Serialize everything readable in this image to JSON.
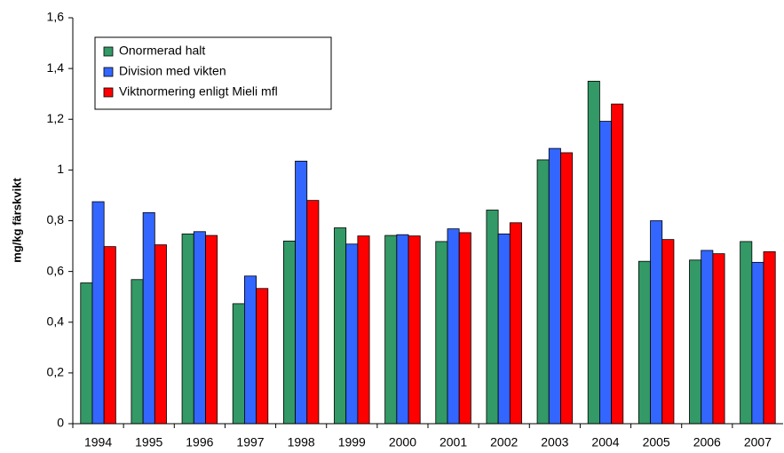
{
  "chart_data": {
    "type": "bar",
    "y_label": "mg/kg färskvikt",
    "categories": [
      "1994",
      "1995",
      "1996",
      "1997",
      "1998",
      "1999",
      "2000",
      "2001",
      "2002",
      "2003",
      "2004",
      "2005",
      "2006",
      "2007"
    ],
    "series": [
      {
        "name": "Onormerad halt",
        "color": "#339966",
        "values": [
          0.555,
          0.568,
          0.748,
          0.473,
          0.72,
          0.772,
          0.742,
          0.718,
          0.842,
          1.04,
          1.35,
          0.64,
          0.645,
          0.718
        ]
      },
      {
        "name": "Division med vikten",
        "color": "#3366ff",
        "values": [
          0.875,
          0.832,
          0.757,
          0.582,
          1.035,
          0.708,
          0.745,
          0.768,
          0.748,
          1.085,
          1.192,
          0.8,
          0.683,
          0.636
        ]
      },
      {
        "name": "Viktnormering enligt Mieli mfl",
        "color": "#ff0000",
        "values": [
          0.698,
          0.705,
          0.742,
          0.533,
          0.88,
          0.74,
          0.74,
          0.753,
          0.792,
          1.068,
          1.26,
          0.726,
          0.67,
          0.678
        ]
      }
    ],
    "ylim": [
      0,
      1.6
    ],
    "yticks": [
      0,
      {
        "value": 0.2,
        "label": "0,2"
      },
      {
        "value": 0.4,
        "label": "0,4"
      },
      {
        "value": 0.6,
        "label": "0,6"
      },
      {
        "value": 0.8,
        "label": "0,8"
      },
      1,
      {
        "value": 1.2,
        "label": "1,2"
      },
      {
        "value": 1.4,
        "label": "1,4"
      },
      {
        "value": 1.6,
        "label": "1,6"
      }
    ],
    "legend": "upper left"
  }
}
